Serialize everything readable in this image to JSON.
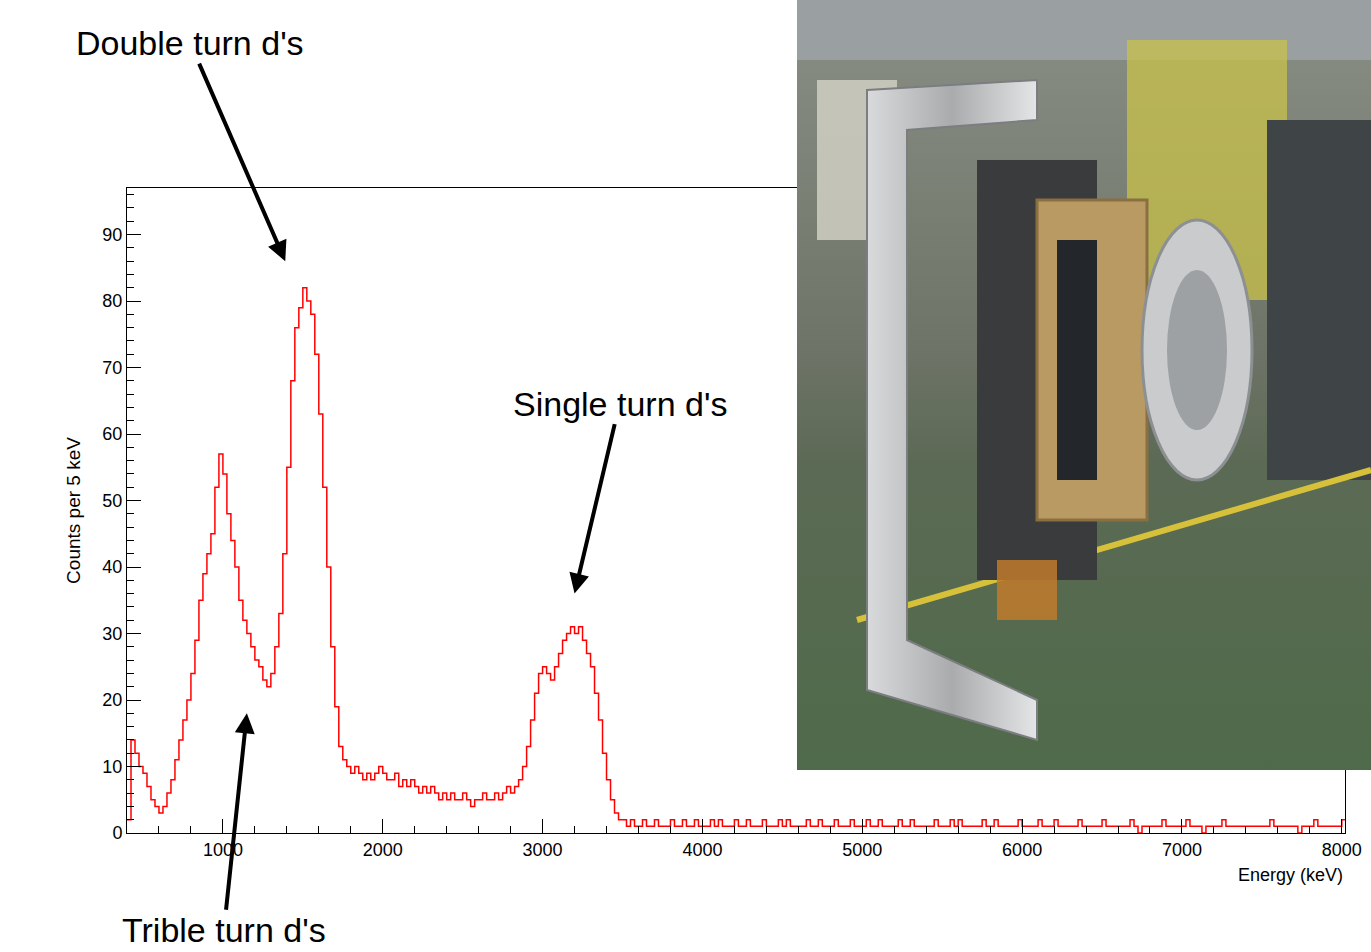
{
  "chart_data": {
    "type": "histogram",
    "xlabel": "Energy (keV)",
    "ylabel": "Counts per 5 keV",
    "color": "#ff0000",
    "grid": false,
    "xlim": [
      400,
      8020
    ],
    "ylim": [
      0,
      97
    ],
    "xticks": [
      1000,
      2000,
      3000,
      4000,
      5000,
      6000,
      7000,
      8000
    ],
    "yticks": [
      0,
      10,
      20,
      30,
      40,
      50,
      60,
      70,
      80,
      90
    ],
    "annotations": [
      {
        "text": "Double turn d's",
        "x": 1390,
        "y": 86
      },
      {
        "text": "Single turn d's",
        "x": 3200,
        "y": 36
      },
      {
        "text": "Trible turn d's",
        "x": 1150,
        "y": 18
      }
    ],
    "bins": [
      400,
      425,
      450,
      475,
      500,
      525,
      550,
      575,
      600,
      625,
      650,
      675,
      700,
      725,
      750,
      775,
      800,
      825,
      850,
      875,
      900,
      925,
      950,
      975,
      1000,
      1025,
      1050,
      1075,
      1100,
      1125,
      1150,
      1175,
      1200,
      1225,
      1250,
      1275,
      1300,
      1325,
      1350,
      1375,
      1400,
      1425,
      1450,
      1475,
      1500,
      1525,
      1550,
      1575,
      1600,
      1625,
      1650,
      1675,
      1700,
      1725,
      1750,
      1775,
      1800,
      1825,
      1850,
      1875,
      1900,
      1925,
      1950,
      1975,
      2000,
      2025,
      2050,
      2075,
      2100,
      2125,
      2150,
      2175,
      2200,
      2225,
      2250,
      2275,
      2300,
      2325,
      2350,
      2375,
      2400,
      2425,
      2450,
      2475,
      2500,
      2525,
      2550,
      2575,
      2600,
      2625,
      2650,
      2675,
      2700,
      2725,
      2750,
      2775,
      2800,
      2825,
      2850,
      2875,
      2900,
      2925,
      2950,
      2975,
      3000,
      3025,
      3050,
      3075,
      3100,
      3125,
      3150,
      3175,
      3200,
      3225,
      3250,
      3275,
      3300,
      3325,
      3350,
      3375,
      3400,
      3425,
      3450,
      3475,
      3500,
      3525,
      3550,
      3575,
      3600,
      3625,
      3650,
      3675,
      3700,
      3725,
      3750,
      3775,
      3800,
      3825,
      3850,
      3875,
      3900,
      3925,
      3950,
      3975,
      4000,
      4025,
      4050,
      4075,
      4100,
      4125,
      4150,
      4175,
      4200,
      4225,
      4250,
      4275,
      4300,
      4325,
      4350,
      4375,
      4400,
      4425,
      4450,
      4475,
      4500,
      4525,
      4550,
      4575,
      4600,
      4625,
      4650,
      4675,
      4700,
      4725,
      4750,
      4775,
      4800,
      4825,
      4850,
      4875,
      4900,
      4925,
      4950,
      4975,
      5000,
      5025,
      5050,
      5075,
      5100,
      5125,
      5150,
      5175,
      5200,
      5225,
      5250,
      5275,
      5300,
      5325,
      5350,
      5375,
      5400,
      5425,
      5450,
      5475,
      5500,
      5525,
      5550,
      5575,
      5600,
      5625,
      5650,
      5675,
      5700,
      5725,
      5750,
      5775,
      5800,
      5825,
      5850,
      5875,
      5900,
      5925,
      5950,
      5975,
      6000,
      6025,
      6050,
      6075,
      6100,
      6125,
      6150,
      6175,
      6200,
      6225,
      6250,
      6275,
      6300,
      6325,
      6350,
      6375,
      6400,
      6425,
      6450,
      6475,
      6500,
      6525,
      6550,
      6575,
      6600,
      6625,
      6650,
      6675,
      6700,
      6725,
      6750,
      6775,
      6800,
      6825,
      6850,
      6875,
      6900,
      6925,
      6950,
      6975,
      7000,
      7025,
      7050,
      7075,
      7100,
      7125,
      7150,
      7175,
      7200,
      7225,
      7250,
      7275,
      7300,
      7325,
      7350,
      7375,
      7400,
      7425,
      7450,
      7475,
      7500,
      7525,
      7550,
      7575,
      7600,
      7625,
      7650,
      7675,
      7700,
      7725,
      7750,
      7775,
      7800,
      7825,
      7850,
      7875,
      7900,
      7925,
      7950,
      7975,
      8000,
      8025
    ],
    "values": [
      2,
      14,
      12,
      10,
      9,
      7,
      5,
      4,
      3,
      4,
      6,
      8,
      11,
      14,
      17,
      20,
      24,
      29,
      35,
      39,
      42,
      45,
      52,
      57,
      54,
      48,
      44,
      40,
      35,
      32,
      30,
      28,
      26,
      25,
      23,
      22,
      24,
      28,
      33,
      42,
      55,
      68,
      76,
      79,
      82,
      80,
      78,
      72,
      63,
      52,
      40,
      28,
      19,
      13,
      11,
      10,
      9,
      10,
      9,
      8,
      9,
      8,
      9,
      10,
      9,
      8,
      8,
      9,
      7,
      8,
      7,
      8,
      7,
      6,
      7,
      6,
      7,
      6,
      5,
      6,
      5,
      6,
      5,
      5,
      6,
      5,
      4,
      5,
      5,
      6,
      5,
      5,
      6,
      5,
      6,
      7,
      6,
      7,
      8,
      10,
      13,
      17,
      21,
      24,
      25,
      24,
      23,
      25,
      27,
      29,
      30,
      31,
      30,
      31,
      29,
      27,
      25,
      21,
      17,
      12,
      8,
      5,
      3,
      2,
      2,
      1,
      2,
      1,
      1,
      2,
      1,
      1,
      2,
      1,
      1,
      1,
      2,
      1,
      1,
      2,
      1,
      1,
      2,
      1,
      1,
      1,
      2,
      1,
      2,
      1,
      1,
      1,
      2,
      1,
      1,
      2,
      1,
      1,
      1,
      2,
      1,
      1,
      1,
      2,
      1,
      2,
      1,
      1,
      1,
      1,
      2,
      1,
      1,
      2,
      1,
      1,
      1,
      2,
      1,
      1,
      1,
      2,
      1,
      1,
      1,
      2,
      1,
      1,
      2,
      1,
      1,
      1,
      1,
      2,
      1,
      1,
      2,
      1,
      1,
      1,
      1,
      1,
      2,
      1,
      1,
      1,
      2,
      1,
      2,
      1,
      1,
      1,
      1,
      1,
      2,
      1,
      1,
      2,
      1,
      1,
      1,
      1,
      1,
      2,
      1,
      1,
      1,
      1,
      2,
      1,
      1,
      1,
      2,
      1,
      1,
      1,
      1,
      1,
      2,
      1,
      1,
      1,
      1,
      1,
      2,
      1,
      1,
      1,
      1,
      1,
      1,
      2,
      1,
      0,
      1,
      1,
      1,
      1,
      1,
      2,
      1,
      1,
      1,
      1,
      1,
      2,
      1,
      1,
      1,
      0,
      1,
      1,
      1,
      1,
      2,
      1,
      1,
      1,
      1,
      1,
      1,
      1,
      1,
      1,
      1,
      1,
      2,
      1,
      1,
      1,
      1,
      1,
      1,
      0,
      1,
      1,
      1,
      2,
      1,
      1,
      1,
      1,
      1,
      1,
      2
    ]
  }
}
